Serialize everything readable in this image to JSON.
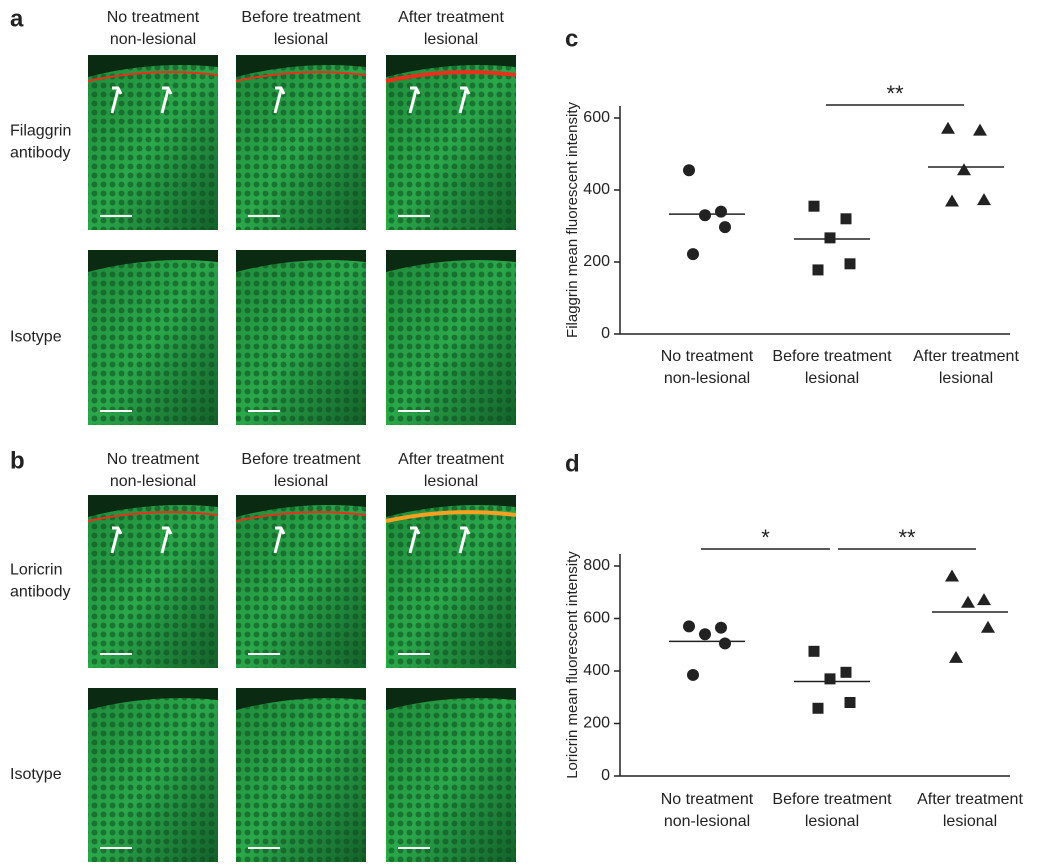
{
  "panels": [
    {
      "label": "a",
      "columns": [
        [
          "No treatment",
          "non-lesional"
        ],
        [
          "Before treatment",
          "lesional"
        ],
        [
          "After treatment",
          "lesional"
        ]
      ],
      "rows": [
        [
          "Filaggrin",
          "antibody"
        ],
        [
          "Isotype"
        ]
      ]
    },
    {
      "label": "b",
      "columns": [
        [
          "No treatment",
          "non-lesional"
        ],
        [
          "Before treatment",
          "lesional"
        ],
        [
          "After treatment",
          "lesional"
        ]
      ],
      "rows": [
        [
          "Loricrin",
          "antibody"
        ],
        [
          "Isotype"
        ]
      ]
    }
  ],
  "chart_data": [
    {
      "type": "dot",
      "label": "c",
      "y_label": "Filaggrin mean fluorescent intensity",
      "categories": [
        [
          "No treatment",
          "non-lesional"
        ],
        [
          "Before treatment",
          "lesional"
        ],
        [
          "After treatment",
          "lesional"
        ]
      ],
      "markers": [
        "circle",
        "square",
        "triangle"
      ],
      "groups": [
        [
          455,
          340,
          330,
          297,
          222
        ],
        [
          355,
          320,
          267,
          195,
          178
        ],
        [
          570,
          565,
          455,
          372,
          368
        ]
      ],
      "means": [
        333,
        264,
        464
      ],
      "ylim": [
        0,
        600
      ],
      "yticks": [
        0,
        200,
        400,
        600
      ],
      "significance": [
        {
          "text": "**",
          "from": 1,
          "to": 2
        }
      ]
    },
    {
      "type": "dot",
      "label": "d",
      "y_label": "Loricrin mean fluorescent intensity",
      "categories": [
        [
          "No treatment",
          "non-lesional"
        ],
        [
          "Before treatment",
          "lesional"
        ],
        [
          "After treatment",
          "lesional"
        ]
      ],
      "markers": [
        "circle",
        "square",
        "triangle"
      ],
      "groups": [
        [
          570,
          565,
          540,
          505,
          385
        ],
        [
          475,
          395,
          370,
          280,
          258
        ],
        [
          760,
          670,
          660,
          565,
          450
        ]
      ],
      "means": [
        513,
        360,
        625
      ],
      "ylim": [
        0,
        800
      ],
      "yticks": [
        0,
        200,
        400,
        600,
        800
      ],
      "significance": [
        {
          "text": "*",
          "from": 0,
          "to": 1
        },
        {
          "text": "**",
          "from": 1,
          "to": 2
        }
      ]
    }
  ]
}
